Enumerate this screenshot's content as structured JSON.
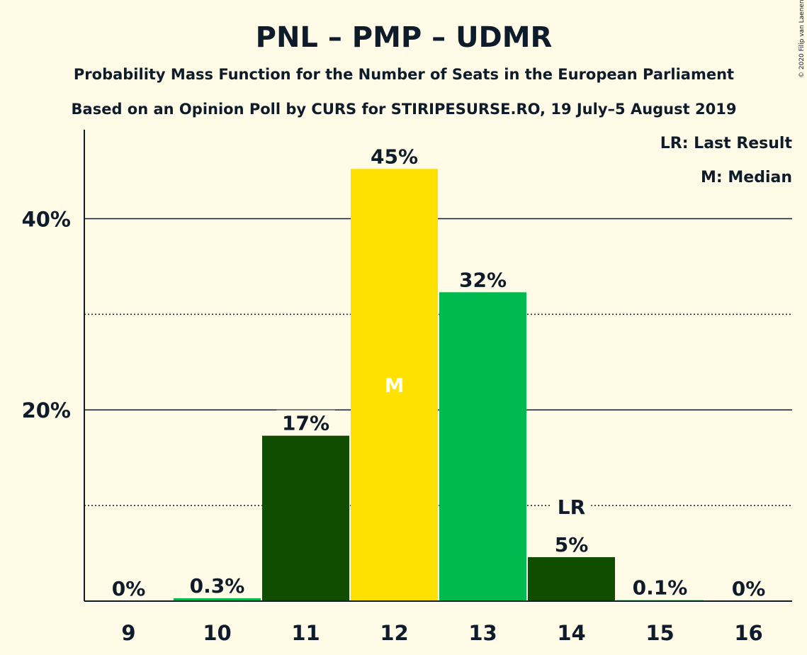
{
  "chart_data": {
    "type": "bar",
    "title": "PNL – PMP – UDMR",
    "subtitle": "Probability Mass Function for the Number of Seats in the European Parliament",
    "subtitle2": "Based on an Opinion Poll by CURS for STIRIPESURSE.RO, 19 July–5 August 2019",
    "copyright": "© 2020 Filip van Laenen",
    "legend": {
      "last_result": "LR: Last Result",
      "median": "M: Median"
    },
    "categories": [
      "9",
      "10",
      "11",
      "12",
      "13",
      "14",
      "15",
      "16"
    ],
    "values": [
      0,
      0.3,
      17.3,
      45.2,
      32.3,
      4.6,
      0.1,
      0
    ],
    "labels": [
      "0%",
      "0.3%",
      "17%",
      "45%",
      "32%",
      "5%",
      "0.1%",
      "0%"
    ],
    "colors": [
      "#114d00",
      "#00b94f",
      "#114d00",
      "#ffe100",
      "#00b94f",
      "#114d00",
      "#00b94f",
      "#114d00"
    ],
    "median_index": 3,
    "median_marker": "M",
    "last_result_index": 5,
    "last_result_marker": "LR",
    "y_ticks": [
      20,
      40
    ],
    "y_tick_labels": [
      "20%",
      "40%"
    ],
    "y_minor_ticks": [
      10,
      30
    ],
    "ylim": [
      0,
      49.3
    ],
    "xlabel": "",
    "ylabel": ""
  }
}
